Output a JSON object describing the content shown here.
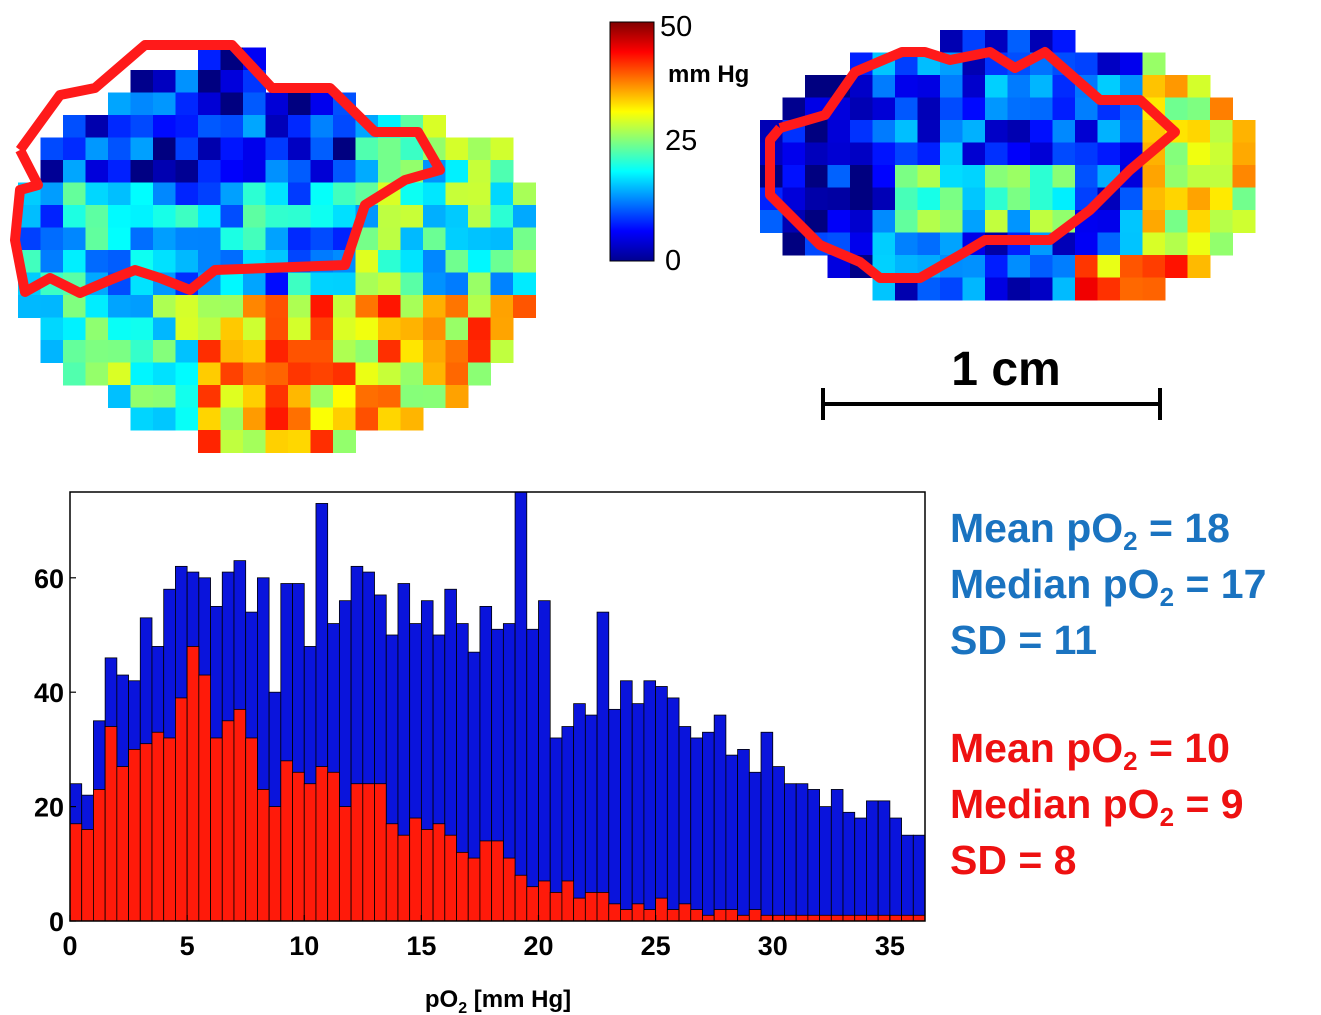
{
  "colorbar": {
    "max_label": "50",
    "mid_label": "25",
    "min_label": "0",
    "unit_label": "mm Hg",
    "range": [
      0,
      50
    ],
    "colormap": "jet"
  },
  "maps": {
    "scale_label": "1 cm",
    "contour_color": "#ff1a1a"
  },
  "stats_blue": {
    "color": "#1a73c0",
    "mean_prefix": "Mean pO",
    "mean_sub": "2",
    "mean_value": " = 18",
    "median_prefix": "Median pO",
    "median_sub": "2",
    "median_value": " = 17",
    "sd_text": "SD = 11"
  },
  "stats_red": {
    "color": "#ee1111",
    "mean_prefix": "Mean pO",
    "mean_sub": "2",
    "mean_value": " = 10",
    "median_prefix": "Median pO",
    "median_sub": "2",
    "median_value": " = 9",
    "sd_text": "SD = 8"
  },
  "chart_data": {
    "type": "bar",
    "stacking": "overlay",
    "xlabel_main": "pO",
    "xlabel_sub": "2",
    "xlabel_rest": " [mm Hg]",
    "xlim": [
      0,
      36.5
    ],
    "ylim": [
      0,
      75
    ],
    "x_ticks": [
      "0",
      "5",
      "10",
      "15",
      "20",
      "25",
      "30",
      "35"
    ],
    "y_ticks": [
      "0",
      "20",
      "40",
      "60"
    ],
    "bin_width": 0.5,
    "x": [
      0.25,
      0.75,
      1.25,
      1.75,
      2.25,
      2.75,
      3.25,
      3.75,
      4.25,
      4.75,
      5.25,
      5.75,
      6.25,
      6.75,
      7.25,
      7.75,
      8.25,
      8.75,
      9.25,
      9.75,
      10.25,
      10.75,
      11.25,
      11.75,
      12.25,
      12.75,
      13.25,
      13.75,
      14.25,
      14.75,
      15.25,
      15.75,
      16.25,
      16.75,
      17.25,
      17.75,
      18.25,
      18.75,
      19.25,
      19.75,
      20.25,
      20.75,
      21.25,
      21.75,
      22.25,
      22.75,
      23.25,
      23.75,
      24.25,
      24.75,
      25.25,
      25.75,
      26.25,
      26.75,
      27.25,
      27.75,
      28.25,
      28.75,
      29.25,
      29.75,
      30.25,
      30.75,
      31.25,
      31.75,
      32.25,
      32.75,
      33.25,
      33.75,
      34.25,
      34.75,
      35.25,
      35.75,
      36.25
    ],
    "series": [
      {
        "color": "#0a14dc",
        "values": [
          24,
          22,
          35,
          46,
          43,
          42,
          53,
          48,
          58,
          62,
          61,
          60,
          55,
          61,
          63,
          54,
          60,
          40,
          59,
          59,
          48,
          73,
          52,
          56,
          62,
          61,
          57,
          50,
          59,
          52,
          56,
          50,
          58,
          52,
          47,
          55,
          51,
          52,
          78,
          51,
          56,
          32,
          34,
          38,
          36,
          54,
          37,
          42,
          38,
          42,
          41,
          39,
          34,
          32,
          33,
          36,
          29,
          30,
          26,
          33,
          27,
          24,
          24,
          23,
          20,
          23,
          19,
          18,
          21,
          21,
          18,
          15,
          15
        ]
      },
      {
        "color": "#ff1a0a",
        "values": [
          17,
          16,
          23,
          34,
          27,
          30,
          31,
          33,
          32,
          39,
          48,
          43,
          32,
          35,
          37,
          32,
          23,
          20,
          28,
          26,
          24,
          27,
          26,
          20,
          24,
          24,
          24,
          17,
          15,
          18,
          16,
          17,
          15,
          12,
          11,
          14,
          14,
          11,
          8,
          6,
          7,
          5,
          7,
          4,
          5,
          5,
          3,
          2,
          3,
          2,
          4,
          2,
          3,
          2,
          1,
          2,
          2,
          1,
          2,
          1,
          1,
          1,
          1,
          1,
          1,
          1,
          1,
          1,
          1,
          1,
          1,
          1,
          1
        ]
      }
    ]
  }
}
